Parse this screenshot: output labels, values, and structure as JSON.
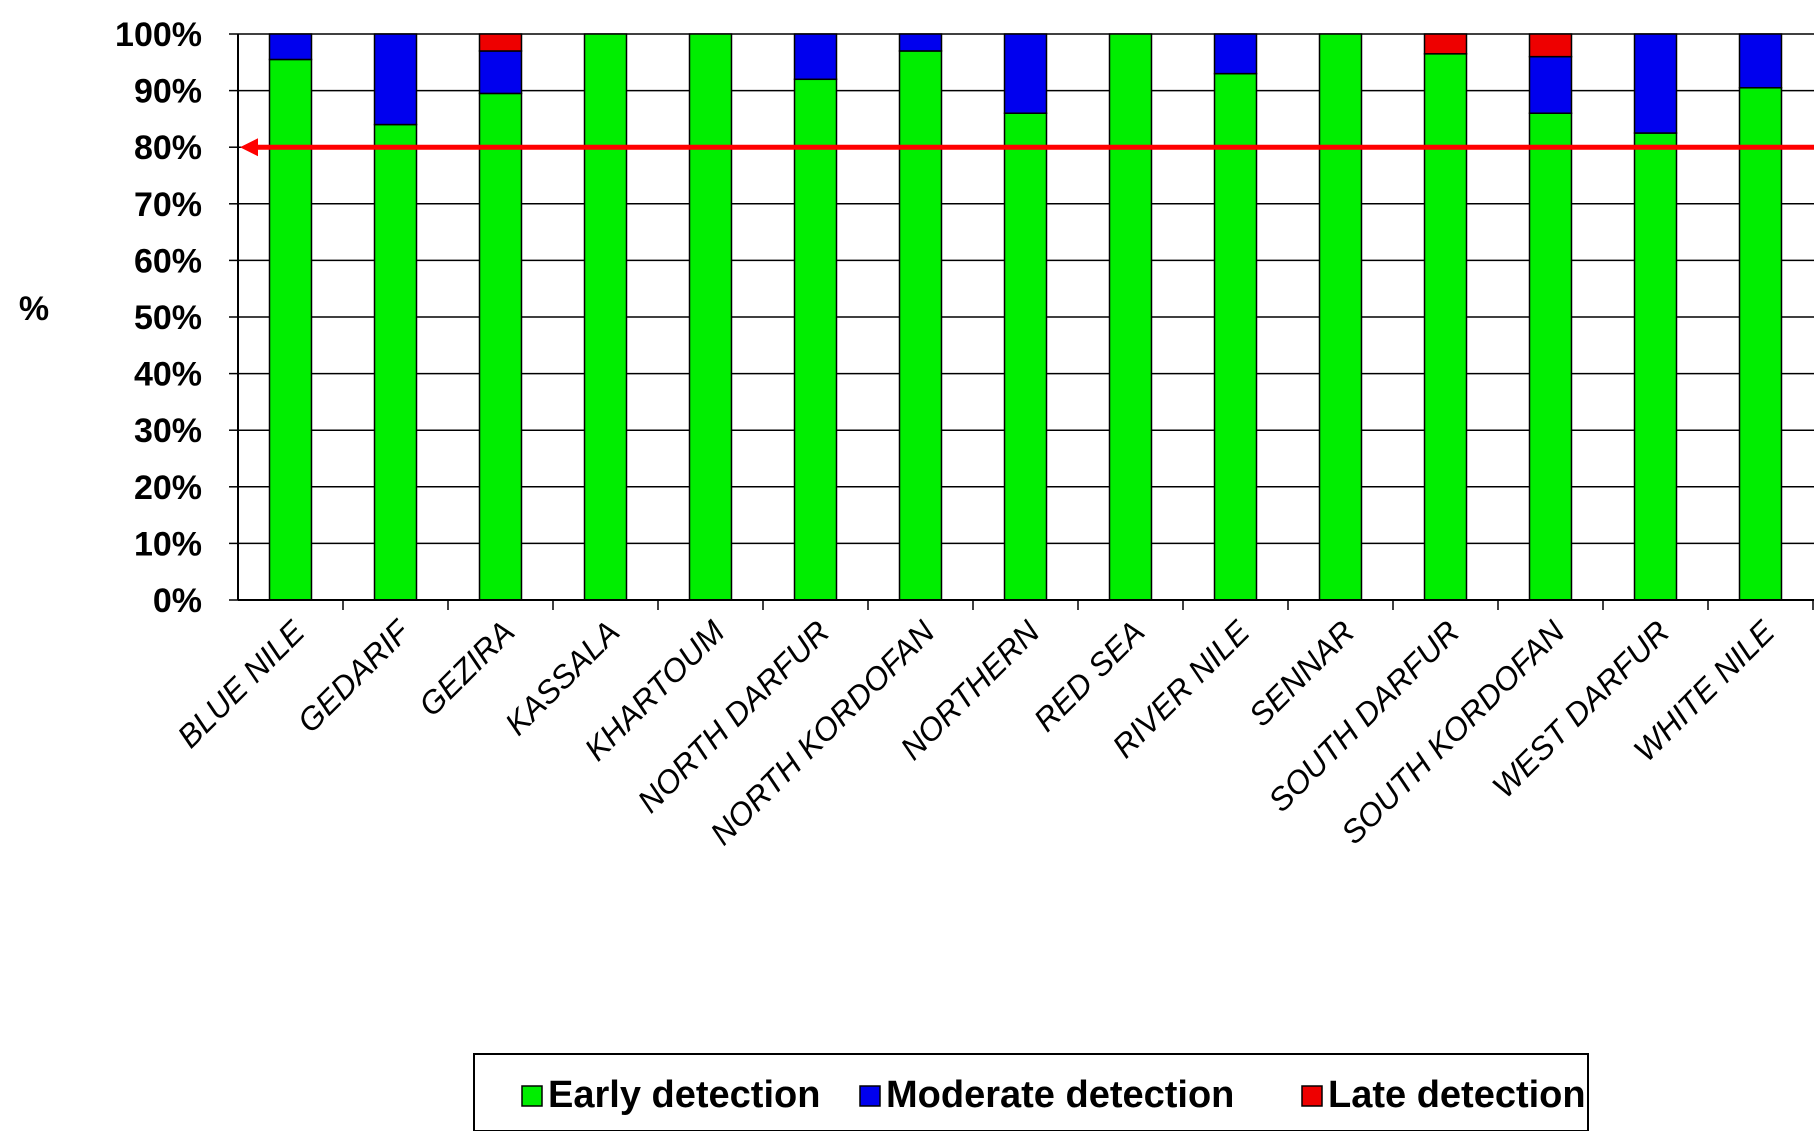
{
  "chart_data": {
    "type": "bar",
    "stacked": true,
    "percent": true,
    "title": "",
    "xlabel": "",
    "ylabel": "%",
    "ylim": [
      0,
      100
    ],
    "yticks": [
      "0%",
      "10%",
      "20%",
      "30%",
      "40%",
      "50%",
      "60%",
      "70%",
      "80%",
      "90%",
      "100%"
    ],
    "grid": true,
    "legend_position": "bottom",
    "categories": [
      "BLUE NILE",
      "GEDARIF",
      "GEZIRA",
      "KASSALA",
      "KHARTOUM",
      "NORTH DARFUR",
      "NORTH KORDOFAN",
      "NORTHERN",
      "RED SEA",
      "RIVER NILE",
      "SENNAR",
      "SOUTH DARFUR",
      "SOUTH KORDOFAN",
      "WEST DARFUR",
      "WHITE NILE"
    ],
    "series": [
      {
        "name": "Early detection",
        "color": "#00ee00",
        "values": [
          95.5,
          84,
          89.5,
          100,
          100,
          92,
          97,
          86,
          100,
          93,
          100,
          96.5,
          86,
          82.5,
          90.5
        ]
      },
      {
        "name": "Moderate detection",
        "color": "#0000ee",
        "values": [
          4.5,
          16,
          7.5,
          0,
          0,
          8,
          3,
          14,
          0,
          7,
          0,
          0,
          10,
          17.5,
          9.5
        ]
      },
      {
        "name": "Late detection",
        "color": "#ee0000",
        "values": [
          0,
          0,
          3,
          0,
          0,
          0,
          0,
          0,
          0,
          0,
          0,
          3.5,
          4,
          0,
          0
        ]
      }
    ],
    "reference_line": {
      "value": 80,
      "color": "#ff0000"
    }
  }
}
